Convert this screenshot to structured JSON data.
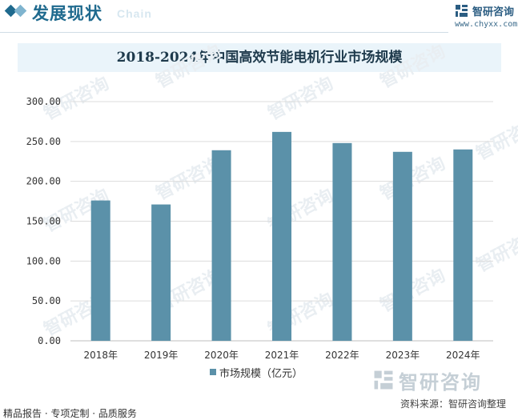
{
  "header": {
    "section_title": "发展现状",
    "section_title_en": "Chain",
    "brand_name": "智研咨询",
    "brand_url": "www.chyxx.com"
  },
  "chart_data": {
    "type": "bar",
    "title": "2018-2024年中国高效节能电机行业市场规模",
    "categories": [
      "2018年",
      "2019年",
      "2020年",
      "2021年",
      "2022年",
      "2023年",
      "2024年"
    ],
    "series": [
      {
        "name": "市场规模（亿元）",
        "values": [
          176,
          171,
          239,
          262,
          248,
          237,
          240
        ],
        "color": "#5b91a9"
      }
    ],
    "yticks": [
      "0.00",
      "50.00",
      "100.00",
      "150.00",
      "200.00",
      "250.00",
      "300.00"
    ],
    "ylim": [
      0,
      300
    ],
    "grid": true,
    "legend": "bottom-center",
    "xlabel": "",
    "ylabel": ""
  },
  "watermark": {
    "brand": "智研咨询"
  },
  "footer": {
    "source": "资料来源：智研咨询整理",
    "services": "精品报告 · 专项定制 · 品质服务"
  }
}
